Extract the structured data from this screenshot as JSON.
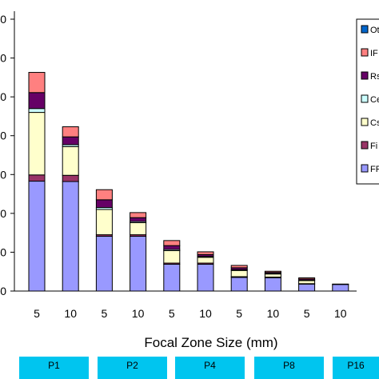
{
  "chart_data": {
    "type": "bar",
    "stacked": true,
    "title": "",
    "xlabel": "Focal Zone Size (mm)",
    "ylabel": "",
    "categories": [
      "5",
      "10",
      "5",
      "10",
      "5",
      "10",
      "5",
      "10",
      "5",
      "10"
    ],
    "ylim": [
      0,
      7
    ],
    "y_tick_labels": [
      "0",
      "0",
      "0",
      "0",
      "0",
      "0",
      "0",
      "0"
    ],
    "grid": false,
    "legend_placement": "top-right",
    "series": [
      {
        "name": "FR",
        "color": "#9999ff",
        "values": [
          2.83,
          2.82,
          1.41,
          1.41,
          0.69,
          0.69,
          0.35,
          0.34,
          0.18,
          0.17
        ]
      },
      {
        "name": "Fi",
        "color": "#993366",
        "values": [
          0.16,
          0.16,
          0.04,
          0.04,
          0.03,
          0.03,
          0.02,
          0.02,
          0.01,
          0.01
        ]
      },
      {
        "name": "Cs",
        "color": "#ffffcc",
        "values": [
          1.61,
          0.74,
          0.65,
          0.31,
          0.32,
          0.15,
          0.16,
          0.08,
          0.08,
          0.0
        ]
      },
      {
        "name": "Ce",
        "color": "#ccffff",
        "values": [
          0.1,
          0.05,
          0.05,
          0.03,
          0.03,
          0.02,
          0.02,
          0.01,
          0.01,
          0.0
        ]
      },
      {
        "name": "Rs",
        "color": "#660066",
        "values": [
          0.41,
          0.2,
          0.2,
          0.1,
          0.1,
          0.05,
          0.05,
          0.03,
          0.03,
          0.0
        ]
      },
      {
        "name": "IF",
        "color": "#ff8080",
        "values": [
          0.52,
          0.26,
          0.26,
          0.13,
          0.13,
          0.07,
          0.06,
          0.03,
          0.03,
          0.0
        ]
      },
      {
        "name": "Ot",
        "color": "#0066cc",
        "values": [
          0.0,
          0.0,
          0.0,
          0.0,
          0.0,
          0.0,
          0.0,
          0.0,
          0.0,
          0.0
        ]
      }
    ]
  },
  "groups": [
    "P1",
    "P2",
    "P4",
    "P8",
    "P16"
  ]
}
